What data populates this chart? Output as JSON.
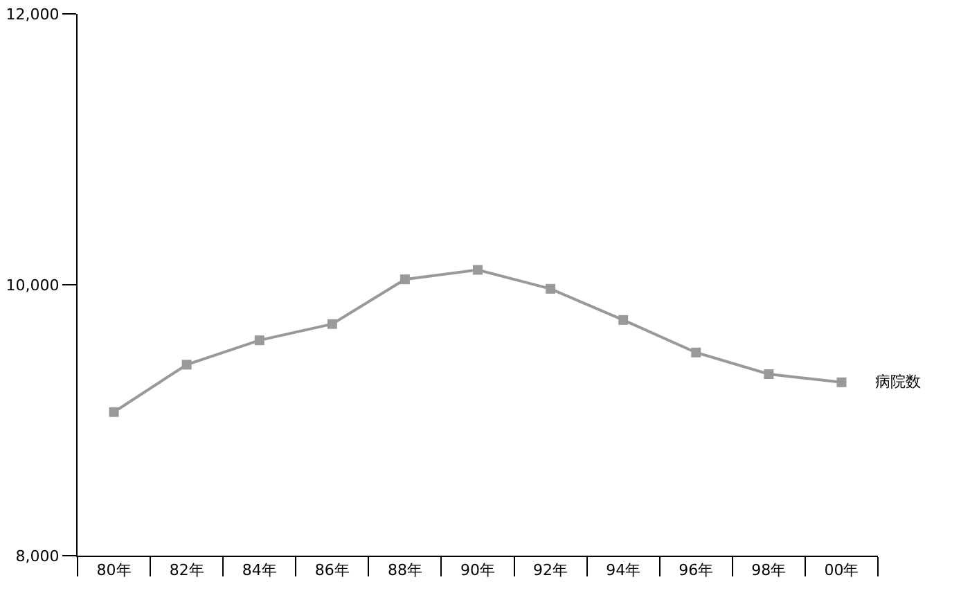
{
  "chart_data": {
    "type": "line",
    "categories": [
      "80年",
      "82年",
      "84年",
      "86年",
      "88年",
      "90年",
      "92年",
      "94年",
      "96年",
      "98年",
      "00年"
    ],
    "series": [
      {
        "name": "病院数",
        "color": "#999999",
        "values": [
          9060,
          9410,
          9590,
          9710,
          10040,
          10110,
          9970,
          9740,
          9500,
          9340,
          9280
        ]
      }
    ],
    "ylim": [
      8000,
      12000
    ],
    "yticks": [
      {
        "value": 8000,
        "label": "8,000"
      },
      {
        "value": 10000,
        "label": "10,000"
      },
      {
        "value": 12000,
        "label": "12,000"
      }
    ],
    "grid": false,
    "legend": false,
    "marker": "square",
    "line_style": "solid"
  }
}
